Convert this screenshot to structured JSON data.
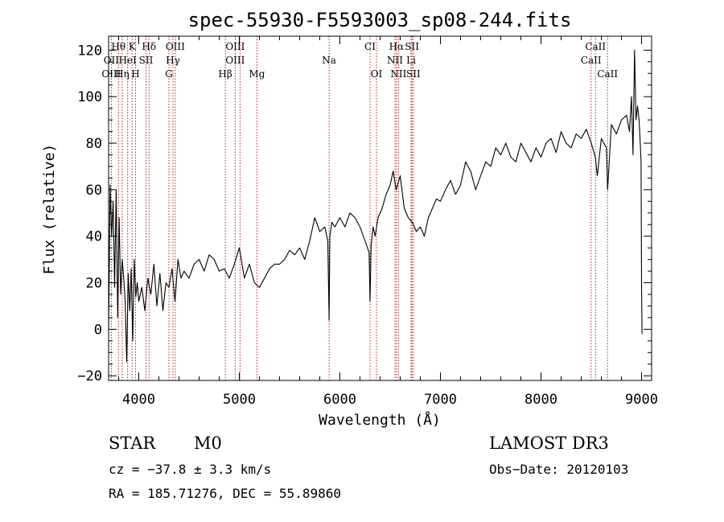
{
  "chart_data": {
    "type": "line",
    "title": "spec-55930-F5593003_sp08-244.fits",
    "xlabel": "Wavelength (Å)",
    "ylabel": "Flux (relative)",
    "xlim": [
      3700,
      9100
    ],
    "ylim": [
      -22,
      126
    ],
    "x_ticks": [
      4000,
      5000,
      6000,
      7000,
      8000,
      9000
    ],
    "y_ticks": [
      -20,
      0,
      20,
      40,
      60,
      80,
      100,
      120
    ],
    "grid": false,
    "spectrum": {
      "name": "flux",
      "x": [
        3700,
        3715,
        3730,
        3745,
        3760,
        3775,
        3790,
        3805,
        3820,
        3835,
        3850,
        3865,
        3880,
        3895,
        3910,
        3925,
        3940,
        3955,
        3970,
        3985,
        4000,
        4030,
        4060,
        4090,
        4120,
        4150,
        4180,
        4210,
        4240,
        4270,
        4300,
        4330,
        4360,
        4390,
        4420,
        4450,
        4500,
        4550,
        4600,
        4650,
        4700,
        4750,
        4800,
        4850,
        4900,
        4950,
        5000,
        5050,
        5100,
        5150,
        5200,
        5250,
        5300,
        5350,
        5400,
        5450,
        5500,
        5550,
        5600,
        5650,
        5700,
        5750,
        5800,
        5850,
        5880,
        5893,
        5900,
        5920,
        5950,
        6000,
        6050,
        6100,
        6150,
        6200,
        6250,
        6290,
        6300,
        6310,
        6330,
        6350,
        6380,
        6420,
        6460,
        6500,
        6530,
        6560,
        6600,
        6640,
        6680,
        6720,
        6760,
        6800,
        6840,
        6880,
        6920,
        6960,
        7000,
        7050,
        7100,
        7150,
        7200,
        7250,
        7300,
        7350,
        7400,
        7450,
        7500,
        7550,
        7600,
        7650,
        7700,
        7750,
        7800,
        7850,
        7900,
        7950,
        8000,
        8050,
        8100,
        8150,
        8200,
        8250,
        8300,
        8350,
        8400,
        8450,
        8500,
        8540,
        8560,
        8600,
        8650,
        8662,
        8700,
        8750,
        8800,
        8850,
        8880,
        8900,
        8915,
        8930,
        8945,
        8960,
        8975,
        8985,
        8995,
        9000,
        9005
      ],
      "y": [
        0,
        62,
        40,
        55,
        18,
        60,
        5,
        48,
        15,
        30,
        22,
        12,
        -14,
        24,
        8,
        26,
        -5,
        30,
        14,
        20,
        12,
        18,
        8,
        22,
        15,
        28,
        10,
        24,
        8,
        20,
        18,
        26,
        12,
        30,
        22,
        25,
        22,
        28,
        30,
        25,
        32,
        30,
        25,
        26,
        22,
        28,
        35,
        22,
        28,
        20,
        18,
        22,
        26,
        28,
        28,
        30,
        34,
        32,
        35,
        30,
        38,
        48,
        42,
        44,
        38,
        4,
        40,
        46,
        44,
        48,
        44,
        50,
        48,
        44,
        38,
        33,
        12,
        36,
        44,
        40,
        48,
        52,
        58,
        62,
        68,
        60,
        66,
        52,
        48,
        46,
        42,
        44,
        40,
        48,
        52,
        56,
        55,
        60,
        64,
        58,
        62,
        72,
        68,
        60,
        66,
        72,
        70,
        78,
        75,
        80,
        74,
        72,
        80,
        76,
        72,
        78,
        74,
        80,
        82,
        76,
        85,
        80,
        78,
        84,
        82,
        86,
        80,
        74,
        66,
        82,
        78,
        60,
        88,
        84,
        90,
        92,
        85,
        100,
        75,
        120,
        90,
        96,
        90,
        82,
        72,
        20,
        -2
      ]
    },
    "emission_lines": [
      {
        "label": "Hθ",
        "wavelength": 3798,
        "row": 1
      },
      {
        "label": "K",
        "wavelength": 3934,
        "row": 1
      },
      {
        "label": "Hδ",
        "wavelength": 4102,
        "row": 1
      },
      {
        "label": "OIII",
        "wavelength": 4363,
        "row": 1
      },
      {
        "label": "OIII",
        "wavelength": 4959,
        "row": 1
      },
      {
        "label": "CI",
        "wavelength": 6300,
        "row": 1
      },
      {
        "label": "Hα",
        "wavelength": 6563,
        "row": 1
      },
      {
        "label": "SII",
        "wavelength": 6717,
        "row": 1
      },
      {
        "label": "CaII",
        "wavelength": 8542,
        "row": 1
      },
      {
        "label": "OII",
        "wavelength": 3727,
        "row": 2
      },
      {
        "label": "HeI",
        "wavelength": 3889,
        "row": 2
      },
      {
        "label": "SII",
        "wavelength": 4072,
        "row": 2
      },
      {
        "label": "Hγ",
        "wavelength": 4340,
        "row": 2
      },
      {
        "label": "OIII",
        "wavelength": 4959,
        "row": 2
      },
      {
        "label": "Na",
        "wavelength": 5893,
        "row": 2
      },
      {
        "label": "NII",
        "wavelength": 6548,
        "row": 2
      },
      {
        "label": "Li",
        "wavelength": 6708,
        "row": 2
      },
      {
        "label": "CaII",
        "wavelength": 8498,
        "row": 2
      },
      {
        "label": "OIII",
        "wavelength": 3727,
        "row": 3
      },
      {
        "label": "Hη",
        "wavelength": 3835,
        "row": 3
      },
      {
        "label": "H",
        "wavelength": 3968,
        "row": 3
      },
      {
        "label": "G",
        "wavelength": 4300,
        "row": 3
      },
      {
        "label": "Hβ",
        "wavelength": 4861,
        "row": 3
      },
      {
        "label": "Mg",
        "wavelength": 5175,
        "row": 3
      },
      {
        "label": "OI",
        "wavelength": 6364,
        "row": 3
      },
      {
        "label": "NII",
        "wavelength": 6583,
        "row": 3
      },
      {
        "label": "SII",
        "wavelength": 6731,
        "row": 3
      },
      {
        "label": "CaII",
        "wavelength": 8662,
        "row": 3
      }
    ],
    "line_marker_wavelengths": [
      3727,
      3798,
      3835,
      3889,
      3934,
      3968,
      4072,
      4102,
      4300,
      4340,
      4363,
      4861,
      4959,
      5007,
      5175,
      5893,
      6300,
      6364,
      6548,
      6563,
      6583,
      6708,
      6717,
      6731,
      8498,
      8542,
      8662
    ]
  },
  "info": {
    "object_class": "STAR",
    "subclass": "M0",
    "survey": "LAMOST DR3",
    "cz": "cz = −37.8 ± 3.3 km/s",
    "obs_date": "Obs−Date: 20120103",
    "coords": "RA = 185.71276, DEC =  55.89860"
  },
  "colors": {
    "line_marker": "#b22222",
    "spectrum": "#000000"
  }
}
